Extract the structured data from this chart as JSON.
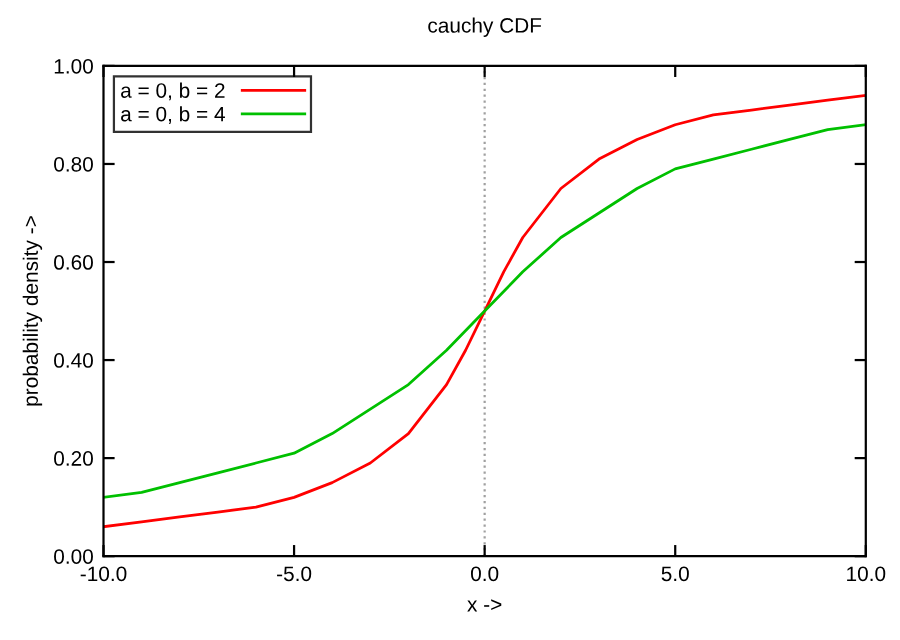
{
  "chart_data": {
    "type": "line",
    "title": "cauchy CDF",
    "xlabel": "x ->",
    "ylabel": "probability density ->",
    "xlim": [
      -10,
      10
    ],
    "xticks": [
      {
        "value": -10,
        "label": "-10.0"
      },
      {
        "value": -5,
        "label": "-5.0"
      },
      {
        "value": 0,
        "label": "0.0"
      },
      {
        "value": 5,
        "label": "5.0"
      },
      {
        "value": 10,
        "label": "10.0"
      }
    ],
    "ylim": [
      0,
      1
    ],
    "yticks": [
      {
        "value": 0,
        "label": "0.00"
      },
      {
        "value": 0.2,
        "label": "0.20"
      },
      {
        "value": 0.4,
        "label": "0.40"
      },
      {
        "value": 0.6,
        "label": "0.60"
      },
      {
        "value": 0.8,
        "label": "0.80"
      },
      {
        "value": 1,
        "label": "1.00"
      }
    ],
    "grid": false,
    "legend": "top left",
    "marker": "none",
    "line_style": "solid",
    "ref_lines": [
      {
        "axis": "x",
        "value": 0,
        "color": "#a0a0a0",
        "line_style": "dotted"
      }
    ],
    "series": [
      {
        "name": "a = 0, b = 2",
        "color": "#ff0000",
        "x": [
          -10,
          -9,
          -8,
          -7,
          -6,
          -5,
          -4,
          -3,
          -2,
          -1,
          -0.5,
          0,
          0.5,
          1,
          2,
          3,
          4,
          5,
          6,
          7,
          8,
          9,
          10
        ],
        "values": [
          0.06,
          0.07,
          0.08,
          0.09,
          0.1,
          0.12,
          0.15,
          0.19,
          0.25,
          0.35,
          0.42,
          0.5,
          0.58,
          0.65,
          0.75,
          0.81,
          0.85,
          0.88,
          0.9,
          0.91,
          0.92,
          0.93,
          0.94
        ]
      },
      {
        "name": "a = 0, b = 4",
        "color": "#00c000",
        "x": [
          -10,
          -9,
          -8,
          -7,
          -6,
          -5,
          -4,
          -3,
          -2,
          -1,
          0,
          1,
          2,
          3,
          4,
          5,
          6,
          7,
          8,
          9,
          10
        ],
        "values": [
          0.12,
          0.13,
          0.15,
          0.17,
          0.19,
          0.21,
          0.25,
          0.3,
          0.35,
          0.42,
          0.5,
          0.58,
          0.65,
          0.7,
          0.75,
          0.79,
          0.81,
          0.83,
          0.85,
          0.87,
          0.88
        ]
      }
    ]
  }
}
